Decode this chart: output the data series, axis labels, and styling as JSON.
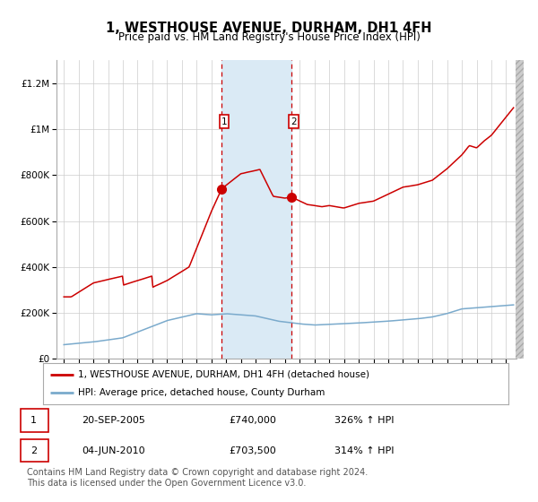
{
  "title": "1, WESTHOUSE AVENUE, DURHAM, DH1 4FH",
  "subtitle": "Price paid vs. HM Land Registry's House Price Index (HPI)",
  "title_fontsize": 10.5,
  "subtitle_fontsize": 8.5,
  "bg_color": "#ffffff",
  "grid_color": "#cccccc",
  "red_line_color": "#cc0000",
  "blue_line_color": "#7aaacc",
  "shade_color": "#daeaf5",
  "dashed_line_color": "#cc0000",
  "sale1_x": 2005.72,
  "sale1_price": 740000,
  "sale1_label": "1",
  "sale2_x": 2010.42,
  "sale2_price": 703500,
  "sale2_label": "2",
  "shade_x1": 2005.72,
  "shade_x2": 2010.42,
  "ylim": [
    0,
    1300000
  ],
  "xlim": [
    1994.5,
    2025.7
  ],
  "yticks": [
    0,
    200000,
    400000,
    600000,
    800000,
    1000000,
    1200000
  ],
  "ytick_labels": [
    "£0",
    "£200K",
    "£400K",
    "£600K",
    "£800K",
    "£1M",
    "£1.2M"
  ],
  "xticks": [
    1995,
    1996,
    1997,
    1998,
    1999,
    2000,
    2001,
    2002,
    2003,
    2004,
    2005,
    2006,
    2007,
    2008,
    2009,
    2010,
    2011,
    2012,
    2013,
    2014,
    2015,
    2016,
    2017,
    2018,
    2019,
    2020,
    2021,
    2022,
    2023,
    2024,
    2025
  ],
  "legend_red": "1, WESTHOUSE AVENUE, DURHAM, DH1 4FH (detached house)",
  "legend_blue": "HPI: Average price, detached house, County Durham",
  "table_row1": [
    "1",
    "20-SEP-2005",
    "£740,000",
    "326% ↑ HPI"
  ],
  "table_row2": [
    "2",
    "04-JUN-2010",
    "£703,500",
    "314% ↑ HPI"
  ],
  "footer": "Contains HM Land Registry data © Crown copyright and database right 2024.\nThis data is licensed under the Open Government Licence v3.0.",
  "footer_fontsize": 7,
  "marker_size": 7
}
